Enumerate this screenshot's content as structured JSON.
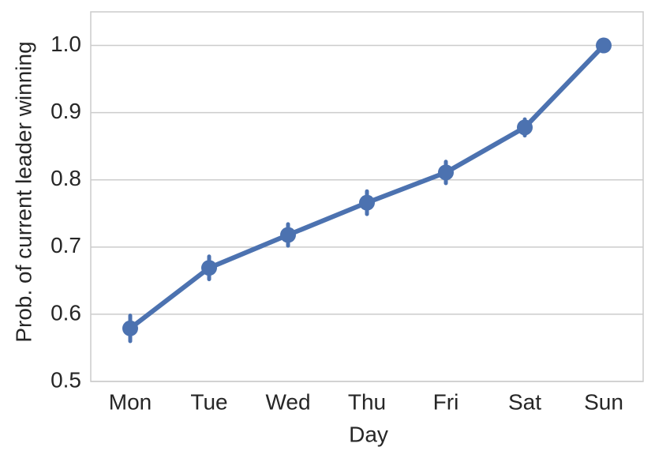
{
  "chart_data": {
    "type": "pointplot",
    "x_label": "Day",
    "y_label": "Prob. of current leader winning",
    "categories": [
      "Mon",
      "Tue",
      "Wed",
      "Thu",
      "Fri",
      "Sat",
      "Sun"
    ],
    "values": [
      0.579,
      0.669,
      0.718,
      0.766,
      0.811,
      0.878,
      1.0
    ],
    "errors": [
      0.019,
      0.017,
      0.016,
      0.017,
      0.016,
      0.012,
      0
    ],
    "color": "#4c72b0",
    "ylim": [
      0.5,
      1.05
    ],
    "yticks": [
      0.5,
      0.6,
      0.7,
      0.8,
      0.9,
      {
        "value": 1,
        "label": "1.0"
      }
    ],
    "grid": true
  }
}
